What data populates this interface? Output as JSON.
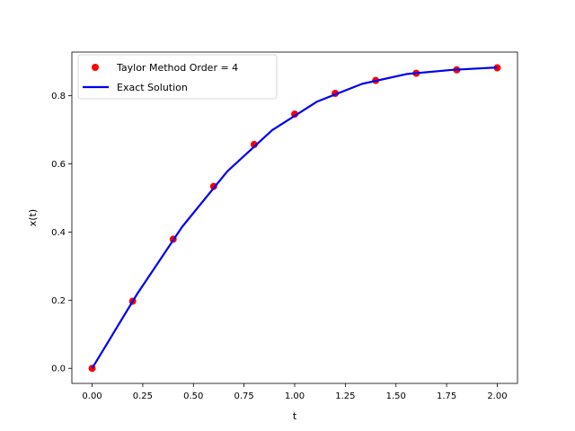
{
  "chart_data": {
    "type": "line",
    "xlabel": "t",
    "ylabel": "x(t)",
    "xlim": [
      -0.1,
      2.1
    ],
    "ylim": [
      -0.0442,
      0.9282
    ],
    "xticks": [
      0.0,
      0.25,
      0.5,
      0.75,
      1.0,
      1.25,
      1.5,
      1.75,
      2.0
    ],
    "xtick_labels": [
      "0.00",
      "0.25",
      "0.50",
      "0.75",
      "1.00",
      "1.25",
      "1.50",
      "1.75",
      "2.00"
    ],
    "yticks": [
      0.0,
      0.2,
      0.4,
      0.6,
      0.8
    ],
    "ytick_labels": [
      "0.0",
      "0.2",
      "0.4",
      "0.6",
      "0.8"
    ],
    "grid": false,
    "legend_position": "top-left",
    "series": [
      {
        "name": "Taylor Method Order = 4",
        "kind": "scatter",
        "color": "#ff0000",
        "x": [
          0.0,
          0.2,
          0.4,
          0.6,
          0.8,
          1.0,
          1.2,
          1.4,
          1.6,
          1.8,
          2.0
        ],
        "y": [
          0.0,
          0.197,
          0.379,
          0.534,
          0.657,
          0.746,
          0.807,
          0.845,
          0.866,
          0.876,
          0.882
        ]
      },
      {
        "name": "Exact Solution",
        "kind": "line",
        "color": "#0000ee",
        "x": [
          0.0,
          0.222,
          0.444,
          0.667,
          0.889,
          1.111,
          1.333,
          1.556,
          1.778,
          2.0
        ],
        "y": [
          0.0,
          0.218,
          0.415,
          0.578,
          0.699,
          0.783,
          0.835,
          0.864,
          0.876,
          0.883
        ]
      }
    ]
  }
}
